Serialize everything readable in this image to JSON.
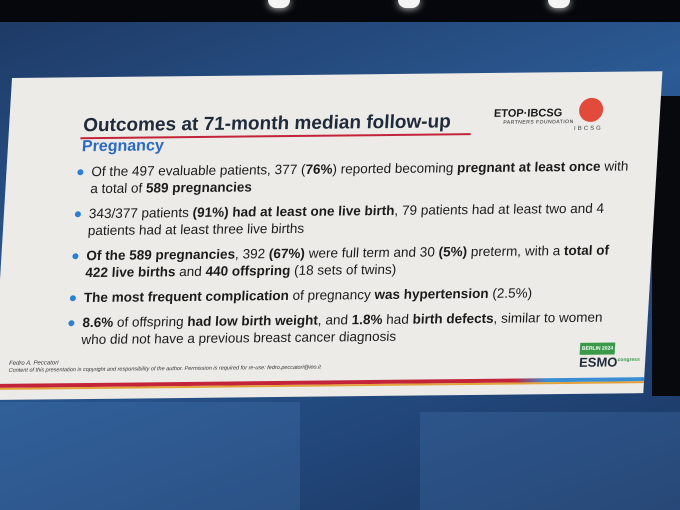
{
  "slide": {
    "title": "Outcomes at 71-month median follow-up",
    "subtitle": "Pregnancy",
    "logos": {
      "etop": "ETOP·IBCSG",
      "etop_sub": "PARTNERS FOUNDATION",
      "ibcsg": "IBCSG",
      "esmo": "ESMO",
      "esmo_sup": "congress",
      "esmo_badge": "BERLIN 2024"
    },
    "bullets": [
      {
        "parts": [
          "Of the 497 evaluable patients, 377 (",
          "76%",
          ") reported becoming ",
          "pregnant at least once",
          " with a total of ",
          "589 pregnancies",
          ""
        ]
      },
      {
        "parts": [
          "343/377 patients ",
          "(91%) had at least one live birth",
          ", 79 patients had at least two and 4 patients had at least three live births",
          "",
          "",
          "",
          ""
        ]
      },
      {
        "parts": [
          "",
          "Of the 589 pregnancies",
          ", 392 ",
          "(67%)",
          " were full term and 30 ",
          "(5%)",
          " preterm, with a ",
          "total of 422 live births",
          " and ",
          "440 offspring",
          " (18 sets of twins)"
        ]
      },
      {
        "parts": [
          "",
          "The most frequent complication",
          " of pregnancy ",
          "was hypertension",
          " (2.5%)"
        ]
      },
      {
        "parts": [
          "",
          "8.6%",
          " of offspring ",
          "had low birth weight",
          ", and ",
          "1.8%",
          " had ",
          "birth defects",
          ", similar to women who did not have a previous breast cancer diagnosis"
        ]
      }
    ],
    "footer": {
      "author": "Fedro A. Peccatori",
      "copyright": "Content of this presentation is copyright and responsibility of the author. Permission is required for re-use: fedro.peccatori@ieo.it"
    }
  },
  "colors": {
    "title": "#1f2a3a",
    "subtitle": "#2a6bc2",
    "accent_red": "#c4243a",
    "bullet": "#2b7fd4"
  }
}
